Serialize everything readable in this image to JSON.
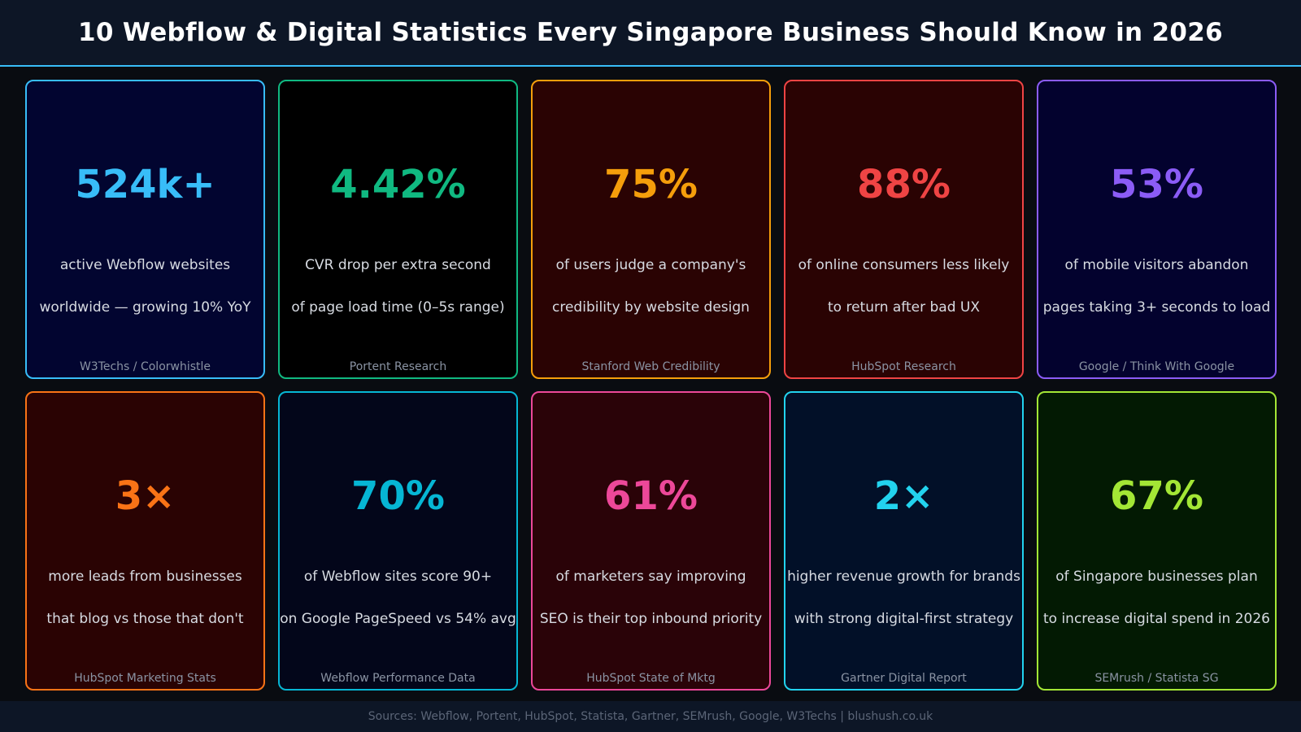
{
  "header": {
    "title": "10 Webflow & Digital Statistics Every Singapore Business Should Know in 2026"
  },
  "cards": [
    {
      "value": "524k+",
      "line1": "active Webflow websites",
      "line2": "worldwide — growing 10% YoY",
      "source": "W3Techs / Colorwhistle",
      "accent": "#38bdf8",
      "border": "#38bdf8",
      "bg": "#020530"
    },
    {
      "value": "4.42%",
      "line1": "CVR drop per extra second",
      "line2": "of page load time (0–5s range)",
      "source": "Portent Research",
      "accent": "#10b981",
      "border": "#10b981",
      "bg": "#000000"
    },
    {
      "value": "75%",
      "line1": "of users judge a company's",
      "line2": "credibility by website design",
      "source": "Stanford Web Credibility",
      "accent": "#f59e0b",
      "border": "#f59e0b",
      "bg": "#2a0303"
    },
    {
      "value": "88%",
      "line1": "of online consumers less likely",
      "line2": "to return after bad UX",
      "source": "HubSpot Research",
      "accent": "#ef4444",
      "border": "#ef4444",
      "bg": "#2a0303"
    },
    {
      "value": "53%",
      "line1": "of mobile visitors abandon",
      "line2": "pages taking 3+ seconds to load",
      "source": "Google / Think With Google",
      "accent": "#8b5cf6",
      "border": "#8b5cf6",
      "bg": "#03022e"
    },
    {
      "value": "3×",
      "line1": "more leads from businesses",
      "line2": "that blog vs those that don't",
      "source": "HubSpot Marketing Stats",
      "accent": "#f97316",
      "border": "#f97316",
      "bg": "#2a0303"
    },
    {
      "value": "70%",
      "line1": "of Webflow sites score 90+",
      "line2": "on Google PageSpeed vs 54% avg",
      "source": "Webflow Performance Data",
      "accent": "#06b6d4",
      "border": "#06b6d4",
      "bg": "#03061a"
    },
    {
      "value": "61%",
      "line1": "of marketers say improving",
      "line2": "SEO is their top inbound priority",
      "source": "HubSpot State of Mktg",
      "accent": "#ec4899",
      "border": "#ec4899",
      "bg": "#2a0308"
    },
    {
      "value": "2×",
      "line1": "higher revenue growth for brands",
      "line2": "with strong digital-first strategy",
      "source": "Gartner Digital Report",
      "accent": "#22d3ee",
      "border": "#22d3ee",
      "bg": "#021028"
    },
    {
      "value": "67%",
      "line1": "of Singapore businesses plan",
      "line2": "to increase digital spend in 2026",
      "source": "SEMrush / Statista SG",
      "accent": "#a3e635",
      "border": "#a3e635",
      "bg": "#031a03"
    }
  ],
  "footer": {
    "text": "Sources: Webflow, Portent, HubSpot, Statista, Gartner, SEMrush, Google, W3Techs  |  blushush.co.uk"
  }
}
